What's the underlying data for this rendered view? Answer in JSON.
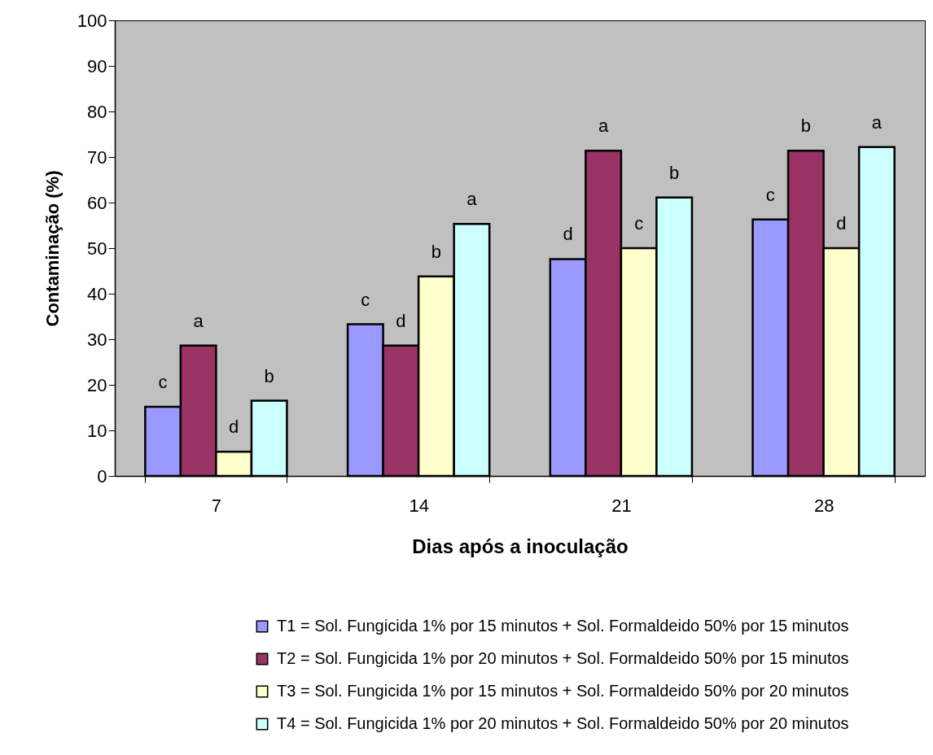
{
  "chart_data": {
    "type": "bar",
    "xlabel": "Dias após a inoculação",
    "ylabel": "Contaminação (%)",
    "categories": [
      "7",
      "14",
      "21",
      "28"
    ],
    "series": [
      {
        "name": "T1 = Sol. Fungicida 1% por 15 minutos + Sol. Formaldeido 50% por 15 minutos",
        "color": "#9999ff",
        "values": [
          15.2,
          33.3,
          47.6,
          56.3
        ],
        "value_labels": [
          "c",
          "c",
          "d",
          "c"
        ]
      },
      {
        "name": "T2 = Sol. Fungicida 1% por 20 minutos + Sol. Formaldeido 50% por 15 minutos",
        "color": "#993366",
        "values": [
          28.6,
          28.6,
          71.4,
          71.4
        ],
        "value_labels": [
          "a",
          "d",
          "a",
          "b"
        ]
      },
      {
        "name": "T3 = Sol. Fungicida 1% por 15 minutos + Sol. Formaldeido 50% por 20 minutos",
        "color": "#ffffcc",
        "values": [
          5.3,
          43.8,
          50,
          50
        ],
        "value_labels": [
          "d",
          "b",
          "c",
          "d"
        ]
      },
      {
        "name": "T4 = Sol. Fungicida 1% por 20 minutos + Sol. Formaldeido 50% por 20 minutos",
        "color": "#ccffff",
        "values": [
          16.5,
          55.3,
          61.1,
          72.2
        ],
        "value_labels": [
          "b",
          "a",
          "b",
          "a"
        ]
      }
    ],
    "ylim": [
      0,
      100
    ],
    "yticks": [
      0,
      10,
      20,
      30,
      40,
      50,
      60,
      70,
      80,
      90,
      100
    ],
    "legend": "bottom"
  }
}
